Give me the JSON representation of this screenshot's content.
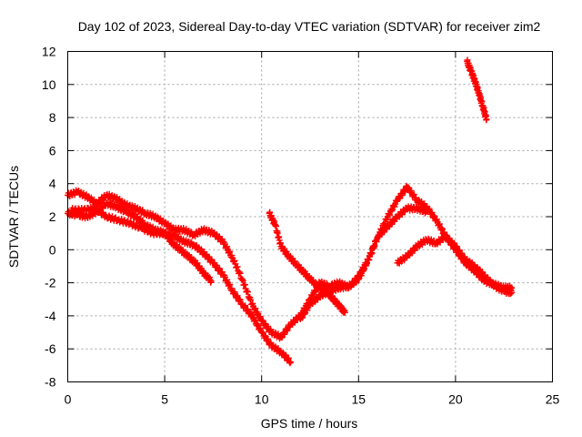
{
  "chart_data": {
    "type": "scatter",
    "title": "Day 102 of 2023, Sidereal Day-to-day VTEC variation (SDTVAR) for receiver zim2",
    "xlabel": "GPS time / hours",
    "ylabel": "SDTVAR / TECUs",
    "xlim": [
      0,
      25
    ],
    "ylim": [
      -8,
      12
    ],
    "x_ticks": [
      0,
      5,
      10,
      15,
      20,
      25
    ],
    "y_ticks": [
      -8,
      -6,
      -4,
      -2,
      0,
      2,
      4,
      6,
      8,
      10,
      12
    ],
    "grid": true,
    "marker": "+",
    "color": "#ff0000",
    "series": [
      {
        "name": "track-a",
        "points": [
          [
            0.0,
            3.3
          ],
          [
            0.5,
            3.5
          ],
          [
            1.0,
            3.2
          ],
          [
            1.5,
            2.8
          ],
          [
            2.0,
            3.3
          ],
          [
            2.5,
            3.1
          ],
          [
            3.0,
            2.7
          ],
          [
            3.5,
            2.5
          ],
          [
            4.0,
            2.2
          ],
          [
            4.5,
            2.0
          ],
          [
            5.0,
            1.6
          ],
          [
            5.5,
            1.2
          ],
          [
            6.0,
            1.2
          ],
          [
            6.5,
            0.9
          ],
          [
            7.0,
            1.2
          ],
          [
            7.5,
            1.0
          ],
          [
            8.0,
            0.5
          ],
          [
            8.5,
            -0.5
          ],
          [
            9.0,
            -1.8
          ],
          [
            9.5,
            -3.3
          ],
          [
            10.0,
            -4.3
          ],
          [
            10.5,
            -5.0
          ],
          [
            11.0,
            -5.3
          ],
          [
            11.5,
            -4.5
          ],
          [
            12.0,
            -4.0
          ],
          [
            12.5,
            -3.0
          ],
          [
            13.0,
            -2.0
          ],
          [
            13.5,
            -2.2
          ],
          [
            14.0,
            -2.0
          ],
          [
            14.5,
            -2.3
          ],
          [
            15.0,
            -1.6
          ],
          [
            15.5,
            -0.6
          ],
          [
            16.0,
            0.8
          ],
          [
            16.5,
            2.0
          ],
          [
            17.0,
            3.0
          ],
          [
            17.5,
            3.8
          ],
          [
            18.0,
            3.0
          ],
          [
            18.5,
            2.6
          ],
          [
            19.0,
            1.8
          ],
          [
            19.5,
            0.8
          ],
          [
            20.0,
            0.0
          ],
          [
            20.5,
            -0.8
          ],
          [
            21.0,
            -1.3
          ],
          [
            21.5,
            -1.9
          ],
          [
            22.0,
            -2.1
          ],
          [
            22.5,
            -2.3
          ],
          [
            22.9,
            -2.3
          ]
        ]
      },
      {
        "name": "track-b",
        "points": [
          [
            0.0,
            2.2
          ],
          [
            0.5,
            2.1
          ],
          [
            1.0,
            2.0
          ],
          [
            1.5,
            2.3
          ],
          [
            2.0,
            2.8
          ],
          [
            2.5,
            2.6
          ],
          [
            3.0,
            2.3
          ],
          [
            3.5,
            2.0
          ],
          [
            4.0,
            1.5
          ],
          [
            4.5,
            1.2
          ],
          [
            5.0,
            1.0
          ],
          [
            5.5,
            0.8
          ],
          [
            6.0,
            0.5
          ],
          [
            6.5,
            0.3
          ],
          [
            7.0,
            -0.2
          ],
          [
            7.5,
            -0.8
          ],
          [
            8.0,
            -1.5
          ],
          [
            8.5,
            -2.5
          ],
          [
            9.0,
            -3.3
          ],
          [
            9.5,
            -4.0
          ],
          [
            10.0,
            -5.0
          ],
          [
            10.5,
            -5.8
          ],
          [
            11.0,
            -6.2
          ],
          [
            11.5,
            -6.8
          ]
        ]
      },
      {
        "name": "track-c",
        "points": [
          [
            0.2,
            2.4
          ],
          [
            0.8,
            2.4
          ],
          [
            1.4,
            2.5
          ],
          [
            2.0,
            2.0
          ],
          [
            2.6,
            1.8
          ],
          [
            3.2,
            1.6
          ],
          [
            3.8,
            1.3
          ],
          [
            4.4,
            1.0
          ],
          [
            5.0,
            1.0
          ],
          [
            5.4,
            0.4
          ],
          [
            5.8,
            0.0
          ],
          [
            6.2,
            -0.4
          ],
          [
            6.6,
            -0.8
          ],
          [
            7.0,
            -1.4
          ],
          [
            7.4,
            -1.9
          ]
        ]
      },
      {
        "name": "track-d",
        "points": [
          [
            10.4,
            2.2
          ],
          [
            10.7,
            1.5
          ],
          [
            11.0,
            0.2
          ],
          [
            11.4,
            -0.4
          ],
          [
            11.8,
            -0.9
          ],
          [
            12.2,
            -1.4
          ],
          [
            12.6,
            -1.9
          ],
          [
            13.0,
            -2.3
          ],
          [
            13.4,
            -2.6
          ],
          [
            13.7,
            -3.0
          ],
          [
            14.0,
            -3.4
          ],
          [
            14.3,
            -3.8
          ]
        ]
      },
      {
        "name": "track-e",
        "points": [
          [
            12.0,
            -4.2
          ],
          [
            12.5,
            -3.3
          ],
          [
            13.0,
            -2.8
          ],
          [
            13.5,
            -2.5
          ],
          [
            14.0,
            -2.3
          ],
          [
            14.5,
            -2.2
          ],
          [
            15.0,
            -1.8
          ],
          [
            15.5,
            -0.6
          ],
          [
            16.0,
            0.8
          ],
          [
            16.5,
            1.4
          ],
          [
            17.0,
            2.0
          ],
          [
            17.5,
            2.5
          ],
          [
            18.0,
            2.5
          ],
          [
            18.5,
            2.3
          ]
        ]
      },
      {
        "name": "track-f",
        "points": [
          [
            17.0,
            -0.8
          ],
          [
            17.5,
            -0.4
          ],
          [
            18.0,
            0.2
          ],
          [
            18.5,
            0.6
          ],
          [
            19.0,
            0.4
          ],
          [
            19.5,
            0.8
          ],
          [
            20.0,
            0.2
          ],
          [
            20.5,
            -0.6
          ],
          [
            21.0,
            -1.0
          ],
          [
            21.5,
            -1.6
          ],
          [
            22.0,
            -2.2
          ],
          [
            22.5,
            -2.5
          ],
          [
            22.9,
            -2.6
          ]
        ]
      },
      {
        "name": "track-g",
        "points": [
          [
            20.6,
            11.4
          ],
          [
            20.8,
            10.8
          ],
          [
            21.0,
            10.2
          ],
          [
            21.2,
            9.5
          ],
          [
            21.4,
            8.7
          ],
          [
            21.6,
            7.9
          ]
        ]
      }
    ]
  }
}
